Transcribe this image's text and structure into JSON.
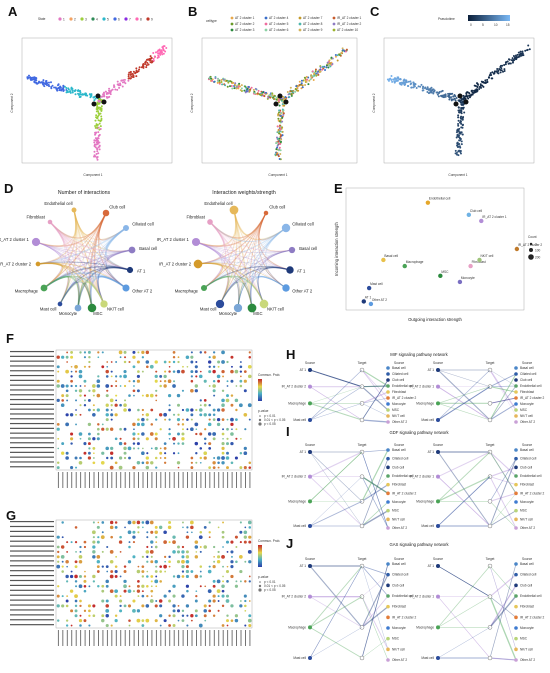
{
  "panels": {
    "A": {
      "label": "A",
      "legend_title": "State",
      "legend_items": [
        "1",
        "2",
        "3",
        "4",
        "5",
        "6",
        "7",
        "8",
        "9"
      ],
      "xlabel": "Component 1",
      "ylabel": "Component 2",
      "colors": [
        "#e377c2",
        "#f4a261",
        "#9ccf3c",
        "#2e8b57",
        "#2ab7ca",
        "#4169e1",
        "#8a2be2",
        "#ff69b4",
        "#c0392b"
      ]
    },
    "B": {
      "label": "B",
      "legend_title": "celltype",
      "legend_items": [
        "AT 2 cluster 1",
        "AT 2 cluster 2",
        "AT 2 cluster 3",
        "AT 2 cluster 4",
        "AT 2 cluster 5",
        "AT 2 cluster 6",
        "AT 2 cluster 7",
        "AT 2 cluster 8",
        "AT 2 cluster 9",
        "IR_AT 2 cluster 1",
        "IR_AT 2 cluster 2",
        "AT 2 cluster 10"
      ],
      "xlabel": "Component 1",
      "ylabel": "Component 2"
    },
    "C": {
      "label": "C",
      "legend_title": "Pseudotime",
      "ticks": [
        "0",
        "5",
        "10",
        "15"
      ],
      "xlabel": "Component 1",
      "ylabel": "Component 2"
    },
    "D": {
      "label": "D",
      "title_left": "Number of interactions",
      "title_right": "Interaction weights/strength",
      "nodes": [
        "Endothelial cell",
        "Club cell",
        "Ciliated cell",
        "Fibroblast",
        "Basal cell",
        "IR_AT 2 cluster 1",
        "AT 1",
        "IR_AT 2 cluster 2",
        "Other AT 2",
        "Macrophage",
        "NK/T cell",
        "Mast cell",
        "MSC",
        "Monocyte"
      ]
    },
    "E": {
      "label": "E",
      "xlabel": "Outgoing interaction strength",
      "ylabel": "Incoming interaction strength",
      "legend_title": "Count",
      "legend_counts": [
        "0",
        "100",
        "200"
      ],
      "points": [
        {
          "name": "Endothelial cell",
          "x": 0.46,
          "y": 0.88,
          "color": "#e5a72a"
        },
        {
          "name": "Club cell",
          "x": 0.69,
          "y": 0.78,
          "color": "#6fb2e4"
        },
        {
          "name": "IR_AT 2 cluster 1",
          "x": 0.76,
          "y": 0.73,
          "color": "#b28dd6"
        },
        {
          "name": "IR_AT 2 cluster 2",
          "x": 0.96,
          "y": 0.5,
          "color": "#c07a2a"
        },
        {
          "name": "Basal cell",
          "x": 0.21,
          "y": 0.41,
          "color": "#e8c14a"
        },
        {
          "name": "Macrophage",
          "x": 0.33,
          "y": 0.36,
          "color": "#4aa356"
        },
        {
          "name": "Fibroblast",
          "x": 0.7,
          "y": 0.36,
          "color": "#e7a0c5"
        },
        {
          "name": "NK/T cell",
          "x": 0.75,
          "y": 0.41,
          "color": "#9ec47a"
        },
        {
          "name": "MSC",
          "x": 0.53,
          "y": 0.28,
          "color": "#2b8a3e"
        },
        {
          "name": "Monocyte",
          "x": 0.64,
          "y": 0.23,
          "color": "#7a6fc2"
        },
        {
          "name": "Mast cell",
          "x": 0.13,
          "y": 0.18,
          "color": "#2c4c9c"
        },
        {
          "name": "AT 1",
          "x": 0.1,
          "y": 0.07,
          "color": "#1f3a7a"
        },
        {
          "name": "Other AT 2",
          "x": 0.14,
          "y": 0.05,
          "color": "#5d9be0"
        }
      ]
    },
    "F": {
      "label": "F",
      "colorbar_title": "Commun. Prob.",
      "size_title": "p-value",
      "size_items": [
        "p < 0.01",
        "0.01 < p < 0.05",
        "p < 0.05"
      ]
    },
    "G": {
      "label": "G",
      "colorbar_title": "Commun. Prob.",
      "size_title": "p-value",
      "size_items": [
        "p < 0.01",
        "0.01 < p < 0.05",
        "p < 0.05"
      ]
    },
    "H": {
      "label": "H",
      "title": "MIF signaling pathway network"
    },
    "I": {
      "label": "I",
      "title": "GDF signaling pathway network"
    },
    "J": {
      "label": "J",
      "title": "GAS signaling pathway network"
    }
  },
  "network": {
    "source_label": "Source",
    "target_label": "Target",
    "left_sources": [
      "AT 1",
      "IR_AT 2 cluster 2",
      "Macrophage",
      "Mast cell"
    ],
    "right_sources": [
      "AT 1",
      "IR_AT 2 cluster 1",
      "Macrophage",
      "Mast cell"
    ],
    "targets": [
      "Basal cell",
      "Ciliated cell",
      "Club cell",
      "Endothelial cell",
      "Fibroblast",
      "IR_AT 2 cluster 2",
      "Monocyte",
      "MSC",
      "NK/T cell",
      "Other AT 2"
    ],
    "target_colors": [
      "#4a86c8",
      "#2f5da8",
      "#1f3a7a",
      "#5aa469",
      "#e6c75a",
      "#e37d3a",
      "#3e7bd0",
      "#b8d47a",
      "#e6b65a",
      "#c9a0d6"
    ]
  }
}
